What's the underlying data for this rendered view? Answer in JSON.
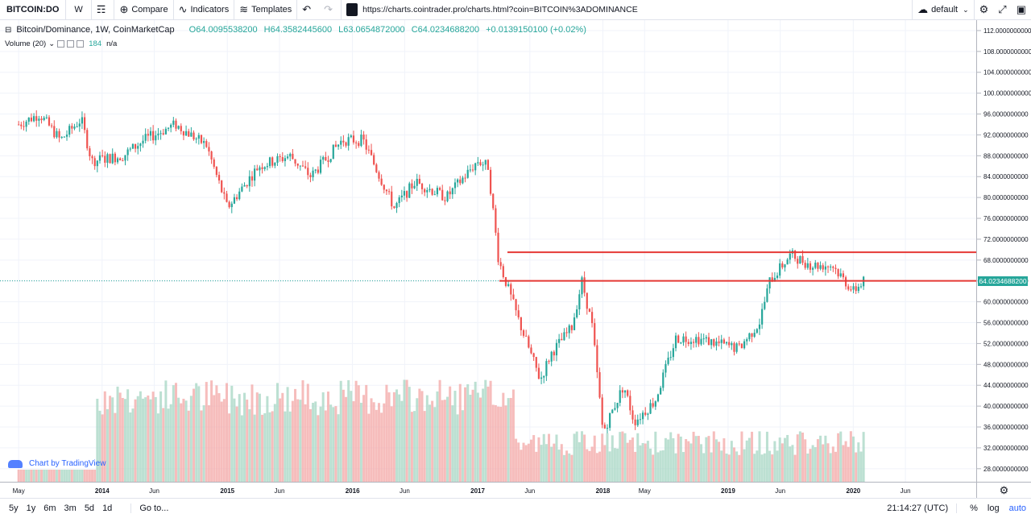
{
  "toolbar": {
    "symbol": "BITCOIN:DO",
    "interval": "W",
    "compare": "Compare",
    "indicators": "Indicators",
    "templates": "Templates",
    "url": "https://charts.cointrader.pro/charts.html?coin=BITCOIN%3ADOMINANCE",
    "layout": "default"
  },
  "legend": {
    "title": "Bitcoin/Dominance, 1W, CoinMarketCap",
    "open": "O64.0095538200",
    "high": "H64.3582445600",
    "low": "L63.0654872000",
    "close": "C64.0234688200",
    "change": "+0.0139150100 (+0.02%)"
  },
  "volume": {
    "label": "Volume (20)",
    "value": "184",
    "ma": "n/a"
  },
  "watermark": "Chart by TradingView",
  "price_tag": "64.0234688200",
  "bottom_bar": {
    "ranges": [
      "5y",
      "1y",
      "6m",
      "3m",
      "5d",
      "1d"
    ],
    "goto": "Go to...",
    "clock": "21:14:27 (UTC)",
    "pct": "%",
    "log": "log",
    "auto": "auto"
  },
  "colors": {
    "up": "#26a69a",
    "down": "#ef5350",
    "line": "#e53935",
    "accent": "#2962ff"
  },
  "chart_data": {
    "type": "candlestick",
    "title": "Bitcoin/Dominance, 1W, CoinMarketCap",
    "y_ticks": [
      "112.0000000000",
      "108.0000000000",
      "104.0000000000",
      "100.0000000000",
      "96.0000000000",
      "92.0000000000",
      "88.0000000000",
      "84.0000000000",
      "80.0000000000",
      "76.0000000000",
      "72.0000000000",
      "68.0000000000",
      "64.0000000000",
      "60.0000000000",
      "56.0000000000",
      "52.0000000000",
      "48.0000000000",
      "44.0000000000",
      "40.0000000000",
      "36.0000000000",
      "32.0000000000",
      "28.0000000000"
    ],
    "ylim": [
      25.5,
      114
    ],
    "x_ticks": [
      "May",
      "2014",
      "Jun",
      "2015",
      "Jun",
      "2016",
      "Jun",
      "2017",
      "Jun",
      "2018",
      "May",
      "2019",
      "Jun",
      "2020",
      "Jun"
    ],
    "series_anchors": [
      {
        "date": "2013-05",
        "price": 94
      },
      {
        "date": "2013-07",
        "price": 96
      },
      {
        "date": "2013-09",
        "price": 91
      },
      {
        "date": "2013-11",
        "price": 95
      },
      {
        "date": "2013-12",
        "price": 87
      },
      {
        "date": "2014-03",
        "price": 88
      },
      {
        "date": "2014-05",
        "price": 91
      },
      {
        "date": "2014-08",
        "price": 94
      },
      {
        "date": "2014-11",
        "price": 90
      },
      {
        "date": "2015-01",
        "price": 78
      },
      {
        "date": "2015-04",
        "price": 86
      },
      {
        "date": "2015-07",
        "price": 88
      },
      {
        "date": "2015-09",
        "price": 84
      },
      {
        "date": "2015-12",
        "price": 91
      },
      {
        "date": "2016-02",
        "price": 91
      },
      {
        "date": "2016-05",
        "price": 78
      },
      {
        "date": "2016-07",
        "price": 83
      },
      {
        "date": "2016-10",
        "price": 80
      },
      {
        "date": "2017-01",
        "price": 87
      },
      {
        "date": "2017-02",
        "price": 86
      },
      {
        "date": "2017-03",
        "price": 68
      },
      {
        "date": "2017-05",
        "price": 56
      },
      {
        "date": "2017-07",
        "price": 45
      },
      {
        "date": "2017-08",
        "price": 50
      },
      {
        "date": "2017-10",
        "price": 55
      },
      {
        "date": "2017-11",
        "price": 64
      },
      {
        "date": "2017-12",
        "price": 55
      },
      {
        "date": "2018-01",
        "price": 35
      },
      {
        "date": "2018-03",
        "price": 44
      },
      {
        "date": "2018-04",
        "price": 37
      },
      {
        "date": "2018-06",
        "price": 41
      },
      {
        "date": "2018-08",
        "price": 53
      },
      {
        "date": "2018-10",
        "price": 53
      },
      {
        "date": "2018-12",
        "price": 52
      },
      {
        "date": "2019-02",
        "price": 51
      },
      {
        "date": "2019-04",
        "price": 56
      },
      {
        "date": "2019-05",
        "price": 64
      },
      {
        "date": "2019-07",
        "price": 69
      },
      {
        "date": "2019-09",
        "price": 67
      },
      {
        "date": "2019-11",
        "price": 67
      },
      {
        "date": "2020-01",
        "price": 62
      },
      {
        "date": "2020-02",
        "price": 64
      }
    ],
    "horizontal_lines": [
      69.5,
      64.02
    ],
    "last_price": 64.02346882
  }
}
